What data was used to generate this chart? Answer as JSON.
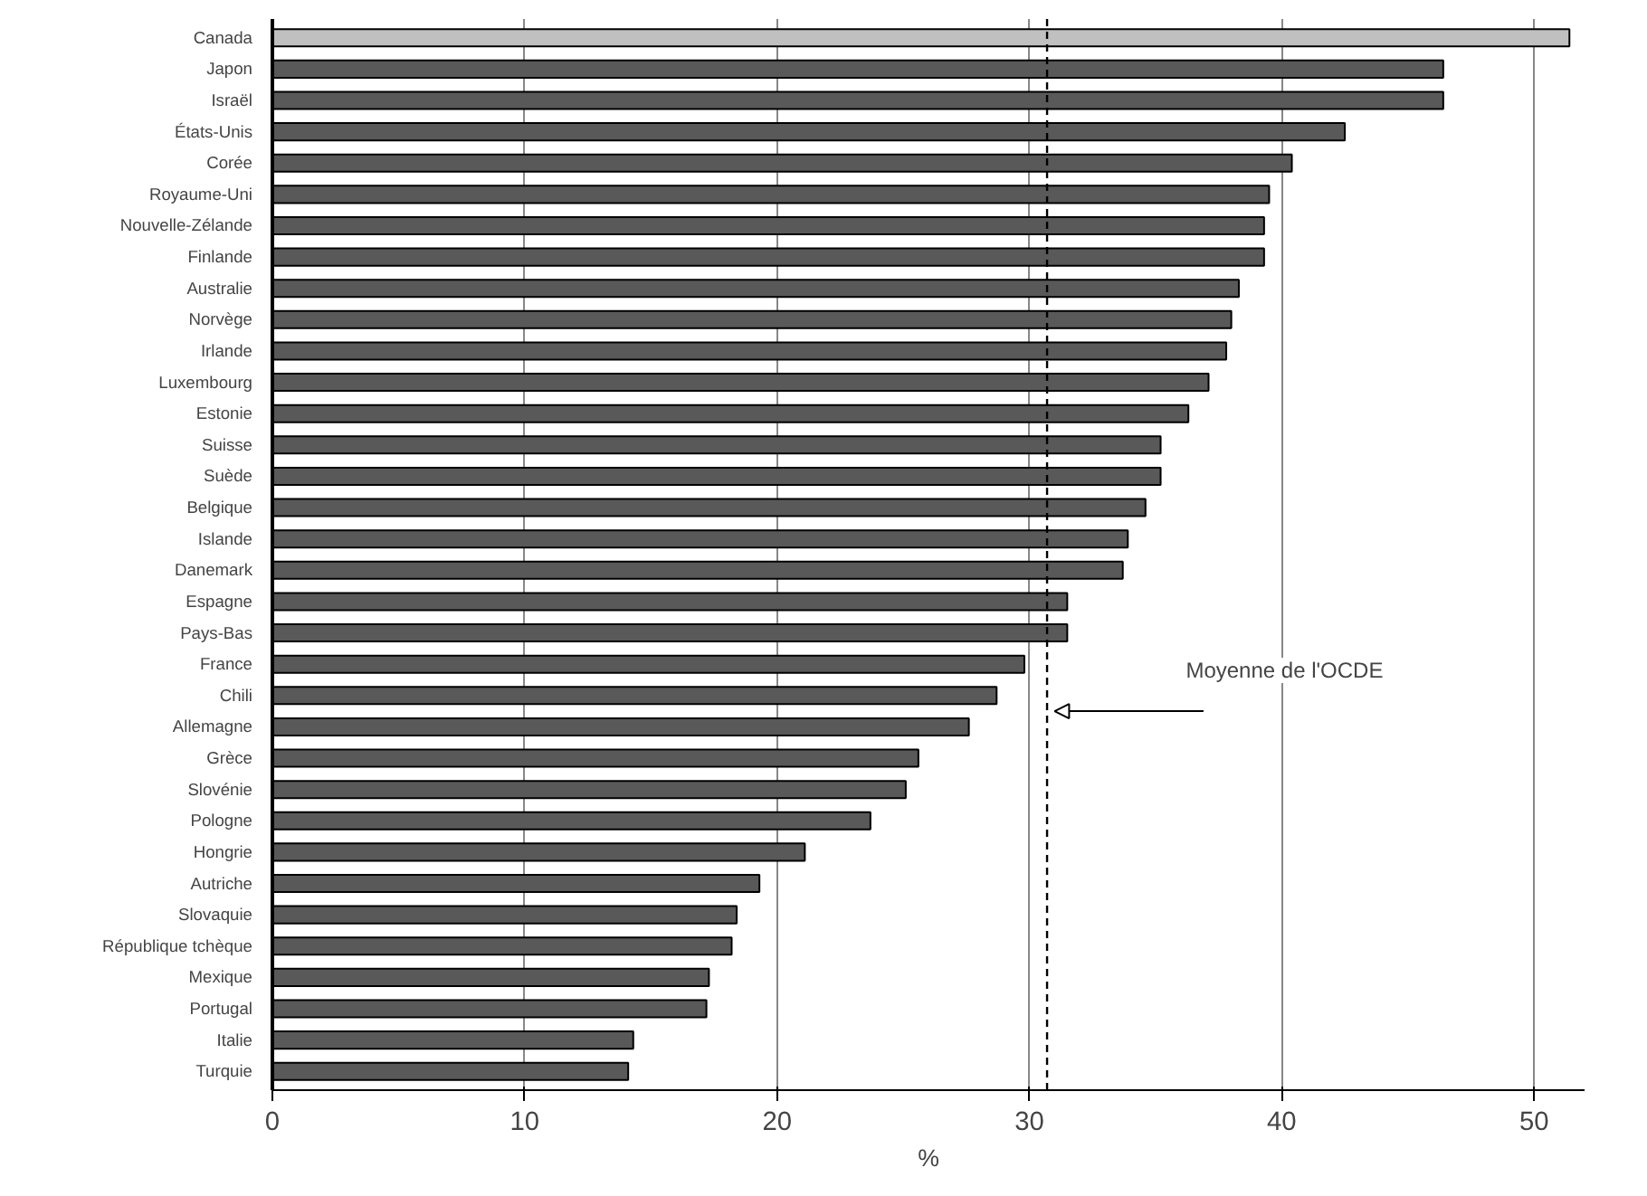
{
  "chart_data": {
    "type": "bar",
    "orientation": "horizontal",
    "xlabel": "%",
    "categories": [
      "Canada",
      "Japon",
      "Israël",
      "États-Unis",
      "Corée",
      "Royaume-Uni",
      "Nouvelle-Zélande",
      "Finlande",
      "Australie",
      "Norvège",
      "Irlande",
      "Luxembourg",
      "Estonie",
      "Suisse",
      "Suède",
      "Belgique",
      "Islande",
      "Danemark",
      "Espagne",
      "Pays-Bas",
      "France",
      "Chili",
      "Allemagne",
      "Grèce",
      "Slovénie",
      "Pologne",
      "Hongrie",
      "Autriche",
      "Slovaquie",
      "République tchèque",
      "Mexique",
      "Portugal",
      "Italie",
      "Turquie"
    ],
    "values": [
      51.4,
      46.4,
      46.4,
      42.5,
      40.4,
      39.5,
      39.3,
      39.3,
      38.3,
      38.0,
      37.8,
      37.1,
      36.3,
      35.2,
      35.2,
      34.6,
      33.9,
      33.7,
      31.5,
      31.5,
      29.8,
      28.7,
      27.6,
      25.6,
      25.1,
      23.7,
      21.1,
      19.3,
      18.4,
      18.2,
      17.3,
      17.2,
      14.3,
      14.1
    ],
    "colors": [
      "#c0c0c0",
      "#595959",
      "#595959",
      "#595959",
      "#595959",
      "#595959",
      "#595959",
      "#595959",
      "#595959",
      "#595959",
      "#595959",
      "#595959",
      "#595959",
      "#595959",
      "#595959",
      "#595959",
      "#595959",
      "#595959",
      "#595959",
      "#595959",
      "#595959",
      "#595959",
      "#595959",
      "#595959",
      "#595959",
      "#595959",
      "#595959",
      "#595959",
      "#595959",
      "#595959",
      "#595959",
      "#595959",
      "#595959",
      "#595959"
    ],
    "xlim": [
      0,
      52
    ],
    "xticks": [
      0,
      10,
      20,
      30,
      40,
      50
    ],
    "grid": "x",
    "ref_lines": [
      {
        "axis": "x",
        "value": 30.7,
        "label": "Moyenne de l'OCDE",
        "line_style": "dashed",
        "color": "#000000"
      }
    ]
  }
}
